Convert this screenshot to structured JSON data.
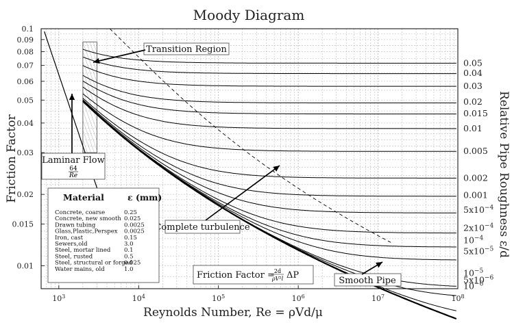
{
  "chart_data": {
    "type": "line",
    "title": "Moody Diagram",
    "xlabel": "Reynolds Number, Re = ρVd/μ",
    "ylabel": "Friction Factor",
    "y2label": "Relative Pipe Roughness ε/d",
    "x_scale": "log",
    "y_scale": "log",
    "xlim": [
      600,
      100000000
    ],
    "ylim": [
      0.008,
      0.1
    ],
    "grid": true,
    "x_ticks": [
      {
        "value": 1000,
        "mant": "10",
        "exp": "3"
      },
      {
        "value": 10000,
        "mant": "10",
        "exp": "4"
      },
      {
        "value": 100000,
        "mant": "10",
        "exp": "5"
      },
      {
        "value": 1000000,
        "mant": "10",
        "exp": "6"
      },
      {
        "value": 10000000,
        "mant": "10",
        "exp": "7"
      },
      {
        "value": 100000000,
        "mant": "10",
        "exp": "8"
      }
    ],
    "y_ticks": [
      {
        "value": 0.1,
        "label": "0.1"
      },
      {
        "value": 0.09,
        "label": "0.09"
      },
      {
        "value": 0.08,
        "label": "0.08"
      },
      {
        "value": 0.07,
        "label": "0.07"
      },
      {
        "value": 0.06,
        "label": "0.06"
      },
      {
        "value": 0.05,
        "label": "0.05"
      },
      {
        "value": 0.04,
        "label": "0.04"
      },
      {
        "value": 0.03,
        "label": "0.03"
      },
      {
        "value": 0.02,
        "label": "0.02"
      },
      {
        "value": 0.015,
        "label": "0.015"
      },
      {
        "value": 0.01,
        "label": "0.01"
      }
    ],
    "roughness_curves": [
      {
        "roughness": 0.05,
        "label": "0.05",
        "label_f": 0.0716
      },
      {
        "roughness": 0.04,
        "label": "0.04",
        "label_f": 0.0649
      },
      {
        "roughness": 0.03,
        "label": "0.03",
        "label_f": 0.0572
      },
      {
        "roughness": 0.02,
        "label": "0.02",
        "label_f": 0.0491
      },
      {
        "roughness": 0.015,
        "label": "0.015",
        "label_f": 0.0438
      },
      {
        "roughness": 0.01,
        "label": "0.01",
        "label_f": 0.0379
      },
      {
        "roughness": 0.005,
        "label": "0.005",
        "label_f": 0.0304
      },
      {
        "roughness": 0.002,
        "label": "0.002",
        "label_f": 0.0234
      },
      {
        "roughness": 0.001,
        "label": "0.001",
        "label_f": 0.0198
      },
      {
        "roughness": 0.0005,
        "label": "5x10",
        "exp": "−4",
        "label_f": 0.0172
      },
      {
        "roughness": 0.0002,
        "label": "2x10",
        "exp": "−4",
        "label_f": 0.0144
      },
      {
        "roughness": 0.0001,
        "label": "10",
        "exp": "−4",
        "label_f": 0.0128
      },
      {
        "roughness": 5e-05,
        "label": "5x10",
        "exp": "−5",
        "label_f": 0.0115
      },
      {
        "roughness": 1e-05,
        "label": "10",
        "exp": "−5",
        "label_f": 0.0093
      },
      {
        "roughness": 5e-06,
        "label": "5x10",
        "exp": "−6",
        "label_f": 0.0087
      },
      {
        "roughness": 1e-06,
        "label": "10",
        "exp": "−6",
        "label_f": 0.0082
      }
    ],
    "series": [
      {
        "name": "Laminar Flow",
        "formula": "f = 64/Re",
        "style": "solid"
      },
      {
        "name": "Smooth Pipe",
        "style": "solid-bold"
      },
      {
        "name": "Complete turbulence",
        "style": "dashed"
      }
    ],
    "annotations": [
      {
        "id": "transition",
        "text": "Transition Region",
        "re_range": [
          2000,
          3000
        ]
      },
      {
        "id": "laminar",
        "text": "Laminar Flow",
        "formula_num": "64",
        "formula_den": "Re"
      },
      {
        "id": "complete",
        "text": "Complete turbulence"
      },
      {
        "id": "smooth",
        "text": "Smooth Pipe"
      },
      {
        "id": "friction",
        "text": "Friction Factor = ",
        "formula_num": "2d",
        "formula_den": "ρV²l",
        "suffix": "ΔP"
      }
    ],
    "materials_table": {
      "headers": [
        "Material",
        "ε (mm)"
      ],
      "rows": [
        [
          "Concrete, coarse",
          "0.25"
        ],
        [
          "Concrete, new smooth",
          "0.025"
        ],
        [
          "Drawn tubing",
          "0.0025"
        ],
        [
          "Glass,Plastic,Perspex",
          "0.0025"
        ],
        [
          "Iron, cast",
          "0.15"
        ],
        [
          "Sewers,old",
          "3.0"
        ],
        [
          "Steel, mortar lined",
          "0.1"
        ],
        [
          "Steel, rusted",
          "0.5"
        ],
        [
          "Steel, structural or forged",
          "0.025"
        ],
        [
          "Water mains, old",
          "1.0"
        ]
      ]
    }
  }
}
